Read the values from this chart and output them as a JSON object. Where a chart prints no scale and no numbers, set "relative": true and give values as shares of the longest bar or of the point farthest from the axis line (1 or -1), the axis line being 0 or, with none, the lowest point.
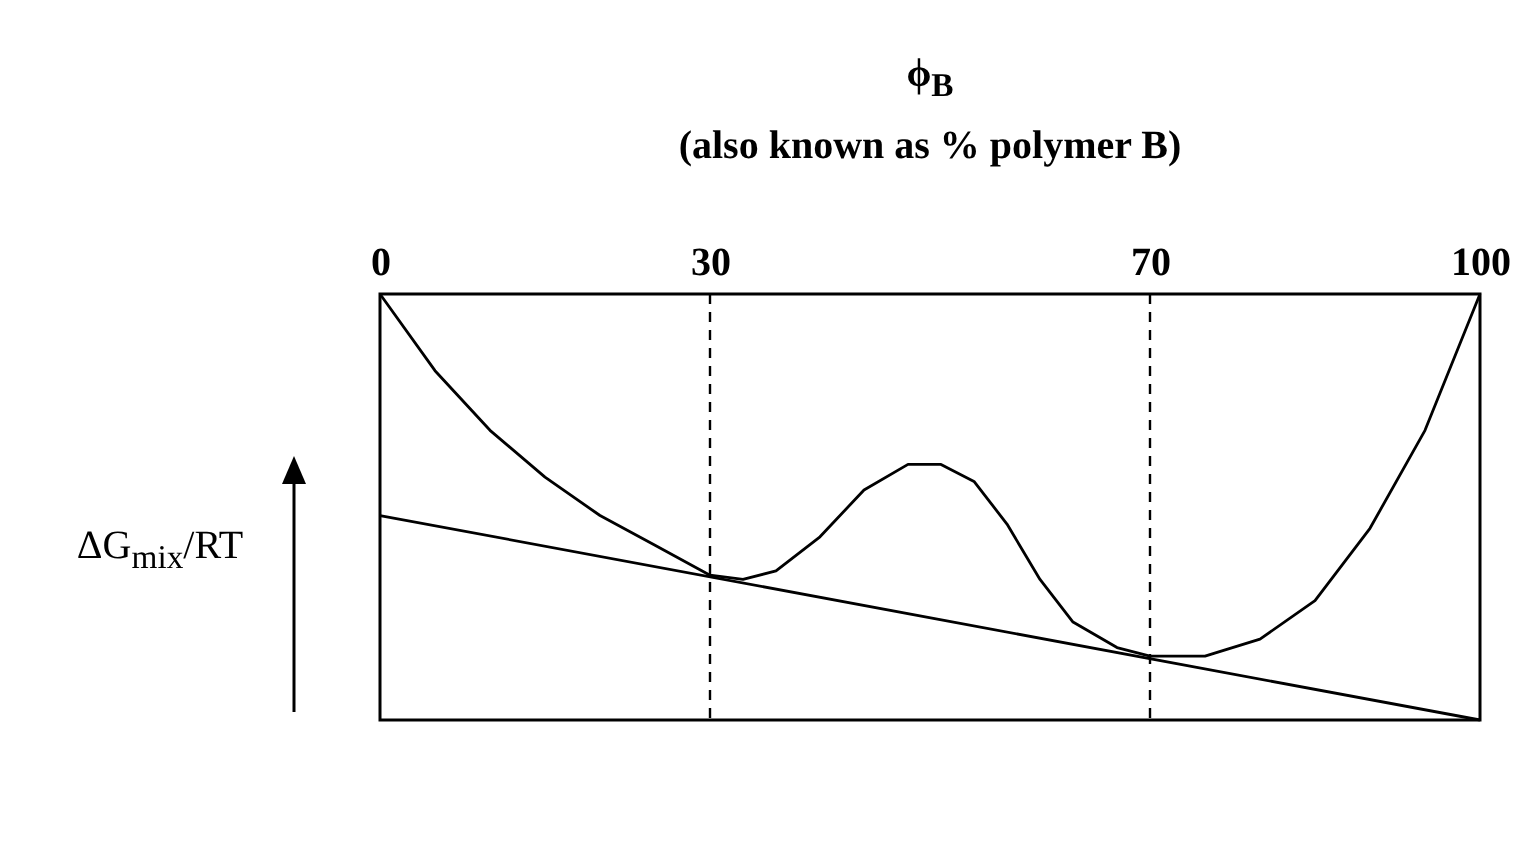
{
  "chart_data": {
    "type": "line",
    "relative": true,
    "xlabel": "ϕ$_{B}$",
    "subtitle": "(also known as % polymer B)",
    "ylabel": "ΔG$_{mix}$/RT",
    "xlim": [
      0,
      100
    ],
    "xticks": [
      0,
      30,
      70,
      100
    ],
    "grid": false,
    "x": [
      0,
      5,
      10,
      15,
      20,
      25,
      30,
      33,
      36,
      40,
      44,
      48,
      51,
      54,
      57,
      60,
      63,
      67,
      70,
      75,
      80,
      85,
      90,
      95,
      100
    ],
    "series": [
      {
        "color": "#000000",
        "values": [
          1.0,
          0.82,
          0.68,
          0.57,
          0.48,
          0.41,
          0.34,
          0.33,
          0.35,
          0.43,
          0.54,
          0.6,
          0.6,
          0.56,
          0.46,
          0.33,
          0.23,
          0.17,
          0.15,
          0.15,
          0.19,
          0.28,
          0.45,
          0.68,
          1.0
        ]
      },
      {
        "type": "line",
        "color": "#000000",
        "x": [
          0,
          100
        ],
        "values": [
          0.48,
          0
        ]
      }
    ],
    "ref_lines": [
      {
        "axis": "x",
        "value": 30,
        "line_style": "dashed",
        "color": "#000000"
      },
      {
        "axis": "x",
        "value": 70,
        "line_style": "dashed",
        "color": "#000000"
      }
    ]
  }
}
